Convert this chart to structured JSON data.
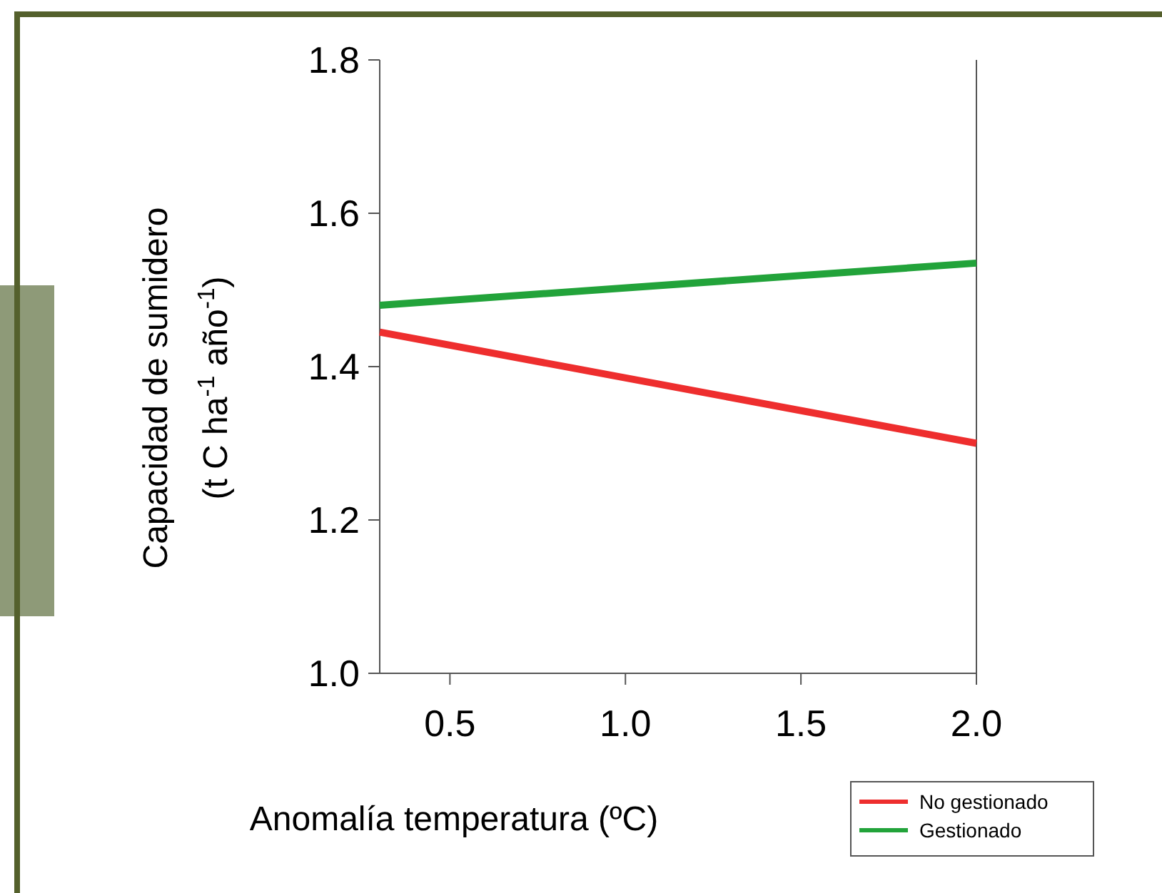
{
  "chart_data": {
    "type": "line",
    "xlabel": "Anomalía temperatura (ºC)",
    "ylabel": "Capacidad de sumidero\n(t C ha$^{-1}$ año$^{-1}$)",
    "x": [
      0.3,
      2.0
    ],
    "series": [
      {
        "name": "No gestionado",
        "color": "#ee2e2e",
        "values": [
          1.445,
          1.3
        ]
      },
      {
        "name": "Gestionado",
        "color": "#22a33a",
        "values": [
          1.48,
          1.535
        ]
      }
    ],
    "xlim": [
      0.3,
      2.0
    ],
    "xticks": [
      0.5,
      {
        "value": 1,
        "label": "1.0"
      },
      1.5,
      {
        "value": 2,
        "label": "2.0"
      }
    ],
    "ylim": [
      1.0,
      1.8
    ],
    "yticks": [
      {
        "value": 1,
        "label": "1.0"
      },
      1.2,
      1.4,
      1.6,
      1.8
    ],
    "legend": "bottom right",
    "grid": false,
    "line_style": "solid"
  }
}
